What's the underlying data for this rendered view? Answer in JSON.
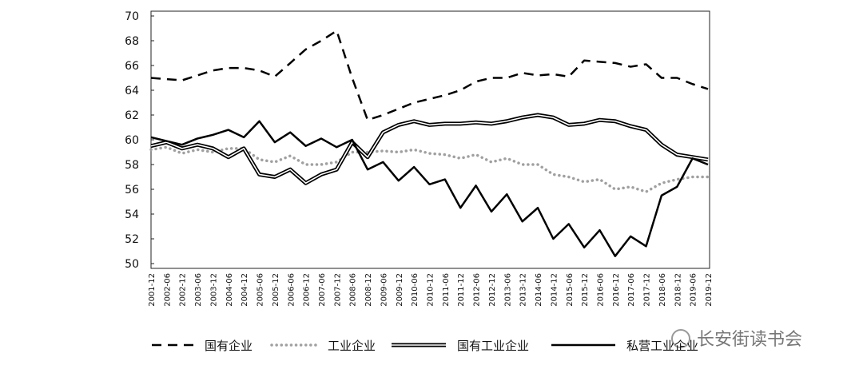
{
  "chart_data": {
    "type": "line",
    "categories": [
      "2001-12",
      "2002-06",
      "2002-12",
      "2003-06",
      "2003-12",
      "2004-06",
      "2004-12",
      "2005-06",
      "2005-12",
      "2006-06",
      "2006-12",
      "2007-06",
      "2007-12",
      "2008-06",
      "2008-12",
      "2009-06",
      "2009-12",
      "2010-06",
      "2010-12",
      "2011-06",
      "2011-12",
      "2012-06",
      "2012-12",
      "2013-06",
      "2013-12",
      "2014-06",
      "2014-12",
      "2015-06",
      "2015-12",
      "2016-06",
      "2016-12",
      "2017-06",
      "2017-12",
      "2018-06",
      "2018-12",
      "2019-06",
      "2019-12"
    ],
    "series": [
      {
        "name": "国有企业",
        "color": "#000000",
        "style": "dashed",
        "values": [
          65.0,
          64.9,
          64.8,
          65.2,
          65.6,
          65.8,
          65.8,
          65.6,
          65.1,
          66.2,
          67.3,
          68.0,
          68.8,
          65.0,
          61.6,
          62.0,
          62.5,
          63.0,
          63.3,
          63.6,
          64.0,
          64.7,
          65.0,
          65.0,
          65.4,
          65.2,
          65.3,
          65.1,
          66.4,
          66.3,
          66.2,
          65.9,
          66.1,
          65.0,
          65.0,
          64.5,
          64.1
        ]
      },
      {
        "name": "工业企业",
        "color": "#a0a0a0",
        "style": "dotted",
        "values": [
          59.2,
          59.4,
          58.9,
          59.2,
          59.0,
          59.3,
          59.3,
          58.4,
          58.2,
          58.7,
          58.0,
          58.0,
          58.2,
          59.0,
          59.0,
          59.1,
          59.0,
          59.2,
          58.9,
          58.8,
          58.5,
          58.8,
          58.2,
          58.5,
          58.0,
          58.0,
          57.2,
          57.0,
          56.6,
          56.8,
          56.0,
          56.2,
          55.8,
          56.5,
          56.8,
          57.0,
          57.0
        ]
      },
      {
        "name": "国有工业企业",
        "color": "#000000",
        "style": "double",
        "values": [
          59.5,
          59.8,
          59.3,
          59.6,
          59.3,
          58.6,
          59.3,
          57.2,
          57.0,
          57.6,
          56.5,
          57.2,
          57.6,
          59.8,
          58.6,
          60.6,
          61.2,
          61.5,
          61.2,
          61.3,
          61.3,
          61.4,
          61.3,
          61.5,
          61.8,
          62.0,
          61.8,
          61.2,
          61.3,
          61.6,
          61.5,
          61.1,
          60.8,
          59.6,
          58.8,
          58.6,
          58.4
        ]
      },
      {
        "name": "私营工业企业",
        "color": "#000000",
        "style": "solid",
        "values": [
          60.2,
          59.9,
          59.6,
          60.1,
          60.4,
          60.8,
          60.2,
          61.5,
          59.8,
          60.6,
          59.5,
          60.1,
          59.4,
          60.0,
          57.6,
          58.2,
          56.7,
          57.8,
          56.4,
          56.8,
          54.5,
          56.3,
          54.2,
          55.6,
          53.4,
          54.5,
          52.0,
          53.2,
          51.3,
          52.7,
          50.6,
          52.2,
          51.4,
          55.5,
          56.2,
          58.5,
          58.0
        ]
      }
    ],
    "ylim": [
      50,
      70
    ],
    "yticks": [
      50,
      52,
      54,
      56,
      58,
      60,
      62,
      64,
      66,
      68,
      70
    ],
    "watermark": "长安街读书会"
  }
}
